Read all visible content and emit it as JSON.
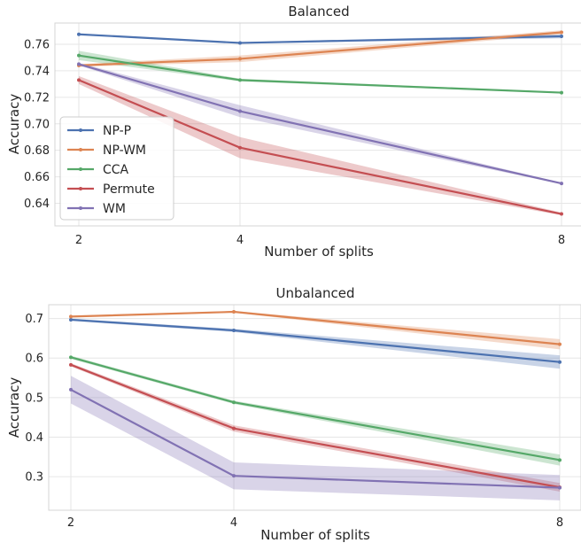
{
  "colors": {
    "NP-P": "#4c72b0",
    "NP-WM": "#dd8452",
    "CCA": "#55a868",
    "Permute": "#c44e52",
    "WM": "#8172b3"
  },
  "legend_placement": "lower-left of top chart",
  "chart_data": [
    {
      "type": "line",
      "title": "Balanced",
      "xlabel": "Number of splits",
      "ylabel": "Accuracy",
      "x": [
        2,
        4,
        8
      ],
      "x_ticks": [
        "2",
        "4",
        "8"
      ],
      "ylim": [
        0.623,
        0.776
      ],
      "y_ticks": [
        "0.64",
        "0.66",
        "0.68",
        "0.70",
        "0.72",
        "0.74",
        "0.76"
      ],
      "grid": true,
      "legend": true,
      "series": [
        {
          "name": "NP-P",
          "values": [
            0.7675,
            0.761,
            0.766
          ],
          "lower": [
            0.767,
            0.7605,
            0.7645
          ],
          "upper": [
            0.768,
            0.7615,
            0.7675
          ]
        },
        {
          "name": "NP-WM",
          "values": [
            0.744,
            0.749,
            0.769
          ],
          "lower": [
            0.743,
            0.7465,
            0.7675
          ],
          "upper": [
            0.745,
            0.7515,
            0.7705
          ]
        },
        {
          "name": "CCA",
          "values": [
            0.7515,
            0.733,
            0.7235
          ],
          "lower": [
            0.748,
            0.732,
            0.723
          ],
          "upper": [
            0.755,
            0.734,
            0.724
          ]
        },
        {
          "name": "Permute",
          "values": [
            0.733,
            0.682,
            0.632
          ],
          "lower": [
            0.73,
            0.674,
            0.631
          ],
          "upper": [
            0.736,
            0.69,
            0.633
          ]
        },
        {
          "name": "WM",
          "values": [
            0.745,
            0.7095,
            0.655
          ],
          "lower": [
            0.744,
            0.705,
            0.6545
          ],
          "upper": [
            0.746,
            0.714,
            0.6555
          ]
        }
      ]
    },
    {
      "type": "line",
      "title": "Unbalanced",
      "xlabel": "Number of splits",
      "ylabel": "Accuracy",
      "x": [
        2,
        4,
        8
      ],
      "x_ticks": [
        "2",
        "4",
        "8"
      ],
      "ylim": [
        0.215,
        0.735
      ],
      "y_ticks": [
        "0.3",
        "0.4",
        "0.5",
        "0.6",
        "0.7"
      ],
      "grid": true,
      "legend": false,
      "series": [
        {
          "name": "NP-P",
          "values": [
            0.697,
            0.67,
            0.59
          ],
          "lower": [
            0.694,
            0.666,
            0.573
          ],
          "upper": [
            0.7,
            0.674,
            0.607
          ]
        },
        {
          "name": "NP-WM",
          "values": [
            0.705,
            0.717,
            0.635
          ],
          "lower": [
            0.703,
            0.715,
            0.622
          ],
          "upper": [
            0.707,
            0.719,
            0.648
          ]
        },
        {
          "name": "CCA",
          "values": [
            0.602,
            0.488,
            0.342
          ],
          "lower": [
            0.598,
            0.484,
            0.328
          ],
          "upper": [
            0.606,
            0.492,
            0.356
          ]
        },
        {
          "name": "Permute",
          "values": [
            0.583,
            0.422,
            0.273
          ],
          "lower": [
            0.579,
            0.414,
            0.262
          ],
          "upper": [
            0.587,
            0.43,
            0.284
          ]
        },
        {
          "name": "WM",
          "values": [
            0.52,
            0.302,
            0.272
          ],
          "lower": [
            0.485,
            0.268,
            0.24
          ],
          "upper": [
            0.555,
            0.336,
            0.304
          ]
        }
      ]
    }
  ]
}
